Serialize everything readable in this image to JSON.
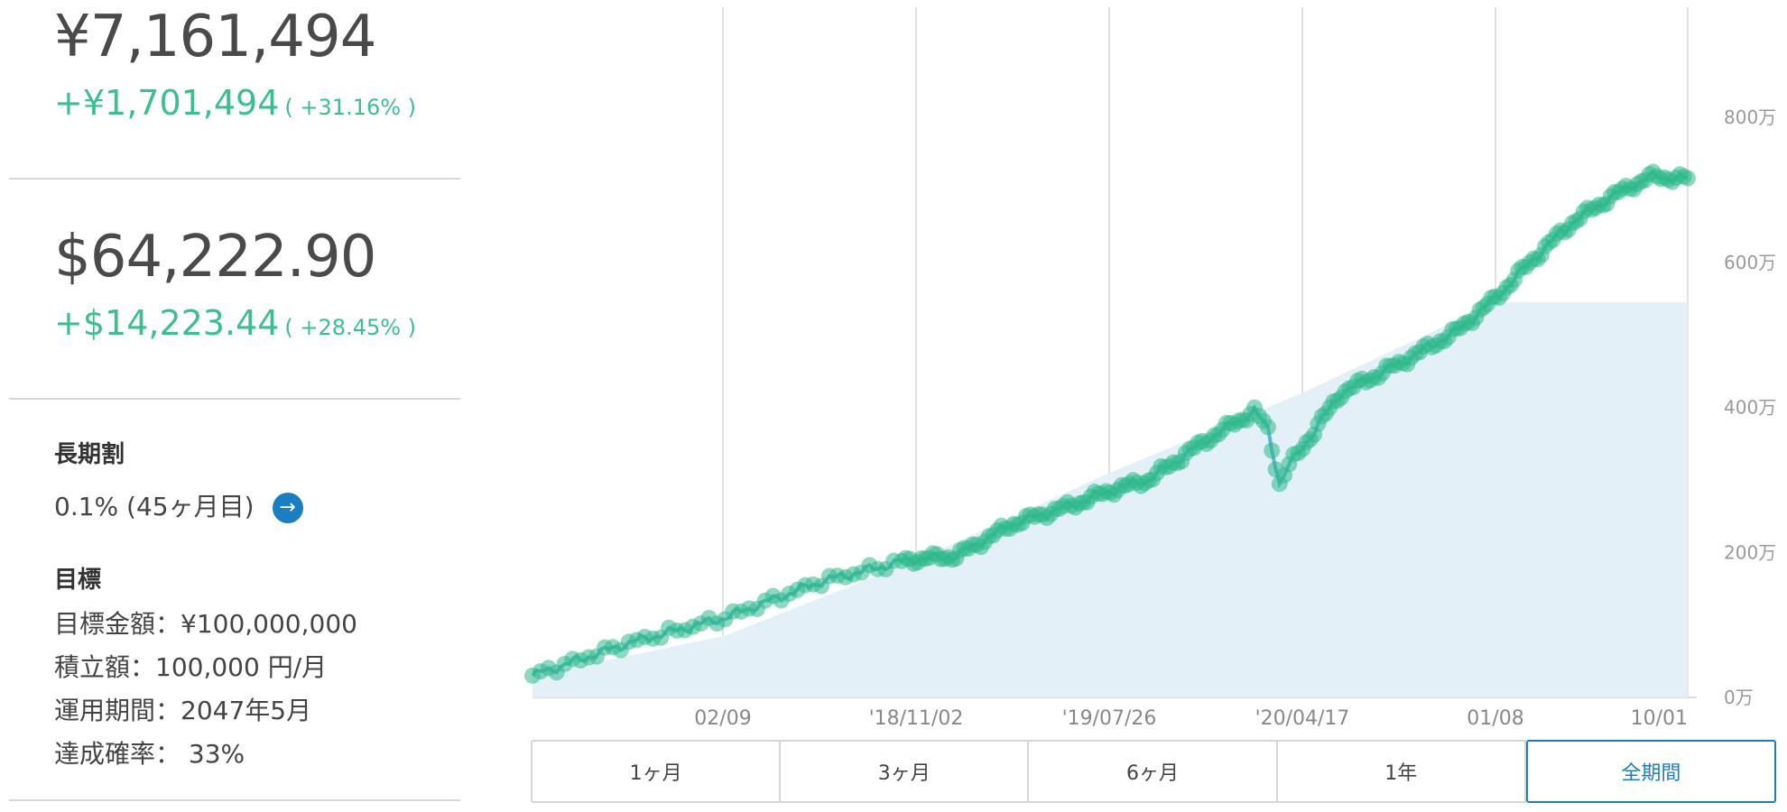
{
  "summary": {
    "jpy_total": "¥7,161,494",
    "jpy_gain": "+¥1,701,494",
    "jpy_pct": "( +31.16% )",
    "usd_total": "$64,222.90",
    "usd_gain": "+$14,223.44",
    "usd_pct": "( +28.45% )"
  },
  "long_term": {
    "heading": "長期割",
    "value": "0.1% (45ヶ月目)",
    "arrow_icon": "arrow-right-icon"
  },
  "goal": {
    "heading": "目標",
    "target_amount": "目標金額：¥100,000,000",
    "monthly": "積立額：100,000 円/月",
    "period": "運用期間：2047年5月",
    "probability": "達成確率： 33%"
  },
  "colors": {
    "accent": "#1a7fc1",
    "gain": "#3cbf8c",
    "dots": "#2fb98a",
    "line": "#5ab4d8",
    "area": "#e4f0f8"
  },
  "range_tabs": [
    {
      "label": "1ヶ月",
      "active": false
    },
    {
      "label": "3ヶ月",
      "active": false
    },
    {
      "label": "6ヶ月",
      "active": false
    },
    {
      "label": "1年",
      "active": false
    },
    {
      "label": "全期間",
      "active": true
    }
  ],
  "chart_data": {
    "type": "area",
    "x_tick_labels": [
      "02/09",
      "'18/11/02",
      "'19/07/26",
      "'20/04/17",
      "01/08",
      "10/01"
    ],
    "y_tick_labels": [
      "0万",
      "200万",
      "400万",
      "600万",
      "800万"
    ],
    "ylim": [
      0,
      950
    ],
    "y_unit": "万円",
    "grid": true,
    "series": [
      {
        "role": "principal",
        "x": [
          0,
          1,
          2,
          3,
          4,
          5,
          6
        ],
        "y": [
          30,
          85,
          190,
          310,
          420,
          545,
          545
        ]
      },
      {
        "role": "valuation",
        "x": [
          0.0,
          0.5,
          1.0,
          1.5,
          1.96,
          2.2,
          2.5,
          2.8,
          3.0,
          3.2,
          3.5,
          3.75,
          3.82,
          3.88,
          3.93,
          4.0,
          4.2,
          4.5,
          4.8,
          5.0,
          5.2,
          5.4,
          5.6,
          5.8,
          6.0
        ],
        "y": [
          30,
          75,
          110,
          160,
          190,
          195,
          240,
          265,
          285,
          300,
          355,
          395,
          370,
          295,
          320,
          345,
          420,
          460,
          505,
          550,
          605,
          655,
          690,
          718,
          716
        ]
      }
    ]
  }
}
